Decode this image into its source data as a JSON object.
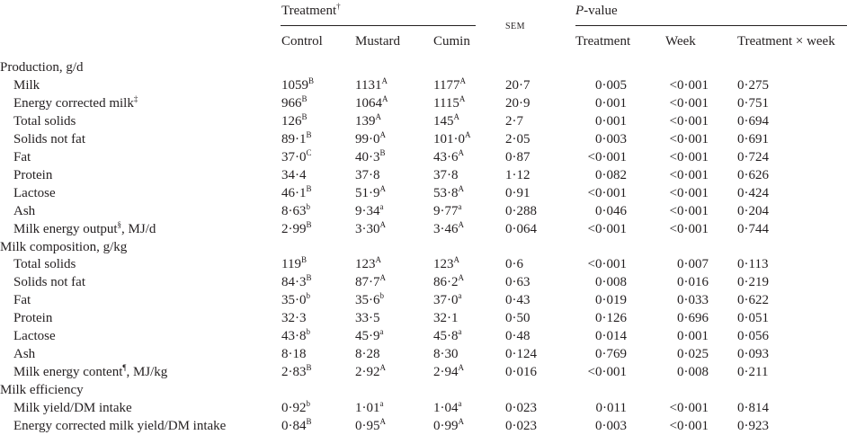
{
  "header": {
    "treatment": [
      "Treatment",
      "†"
    ],
    "sem": "SEM",
    "p_value": [
      "P",
      "-value"
    ],
    "columns": [
      "Control",
      "Mustard",
      "Cumin",
      "Treatment",
      "Week",
      "Treatment × week"
    ]
  },
  "sections": [
    {
      "title": "Production, g/d",
      "rows": [
        {
          "label": "Milk",
          "cells": [
            [
              "1059",
              "B"
            ],
            [
              "1131",
              "A"
            ],
            [
              "1177",
              "A"
            ],
            [
              "20·7"
            ],
            [
              "0·005"
            ],
            [
              "<0·001"
            ],
            [
              "0·275"
            ]
          ]
        },
        {
          "label": "Energy corrected milk",
          "label_sup": "‡",
          "cells": [
            [
              "966",
              "B"
            ],
            [
              "1064",
              "A"
            ],
            [
              "1115",
              "A"
            ],
            [
              "20·9"
            ],
            [
              "0·001"
            ],
            [
              "<0·001"
            ],
            [
              "0·751"
            ]
          ]
        },
        {
          "label": "Total solids",
          "cells": [
            [
              "126",
              "B"
            ],
            [
              "139",
              "A"
            ],
            [
              "145",
              "A"
            ],
            [
              "2·7"
            ],
            [
              "0·001"
            ],
            [
              "<0·001"
            ],
            [
              "0·694"
            ]
          ]
        },
        {
          "label": "Solids not fat",
          "cells": [
            [
              "89·1",
              "B"
            ],
            [
              "99·0",
              "A"
            ],
            [
              "101·0",
              "A"
            ],
            [
              "2·05"
            ],
            [
              "0·003"
            ],
            [
              "<0·001"
            ],
            [
              "0·691"
            ]
          ]
        },
        {
          "label": "Fat",
          "cells": [
            [
              "37·0",
              "C"
            ],
            [
              "40·3",
              "B"
            ],
            [
              "43·6",
              "A"
            ],
            [
              "0·87"
            ],
            [
              "<0·001"
            ],
            [
              "<0·001"
            ],
            [
              "0·724"
            ]
          ]
        },
        {
          "label": "Protein",
          "cells": [
            [
              "34·4"
            ],
            [
              "37·8"
            ],
            [
              "37·8"
            ],
            [
              "1·12"
            ],
            [
              "0·082"
            ],
            [
              "<0·001"
            ],
            [
              "0·626"
            ]
          ]
        },
        {
          "label": "Lactose",
          "cells": [
            [
              "46·1",
              "B"
            ],
            [
              "51·9",
              "A"
            ],
            [
              "53·8",
              "A"
            ],
            [
              "0·91"
            ],
            [
              "<0·001"
            ],
            [
              "<0·001"
            ],
            [
              "0·424"
            ]
          ]
        },
        {
          "label": "Ash",
          "cells": [
            [
              "8·63",
              "b"
            ],
            [
              "9·34",
              "a"
            ],
            [
              "9·77",
              "a"
            ],
            [
              "0·288"
            ],
            [
              "0·046"
            ],
            [
              "<0·001"
            ],
            [
              "0·204"
            ]
          ]
        },
        {
          "label": "Milk energy output",
          "label_sup": "§",
          "label_suffix": ", MJ/d",
          "cells": [
            [
              "2·99",
              "B"
            ],
            [
              "3·30",
              "A"
            ],
            [
              "3·46",
              "A"
            ],
            [
              "0·064"
            ],
            [
              "<0·001"
            ],
            [
              "<0·001"
            ],
            [
              "0·744"
            ]
          ]
        }
      ]
    },
    {
      "title": "Milk composition, g/kg",
      "rows": [
        {
          "label": "Total solids",
          "cells": [
            [
              "119",
              "B"
            ],
            [
              "123",
              "A"
            ],
            [
              "123",
              "A"
            ],
            [
              "0·6"
            ],
            [
              "<0·001"
            ],
            [
              "0·007"
            ],
            [
              "0·113"
            ]
          ]
        },
        {
          "label": "Solids not fat",
          "cells": [
            [
              "84·3",
              "B"
            ],
            [
              "87·7",
              "A"
            ],
            [
              "86·2",
              "A"
            ],
            [
              "0·63"
            ],
            [
              "0·008"
            ],
            [
              "0·016"
            ],
            [
              "0·219"
            ]
          ]
        },
        {
          "label": "Fat",
          "cells": [
            [
              "35·0",
              "b"
            ],
            [
              "35·6",
              "b"
            ],
            [
              "37·0",
              "a"
            ],
            [
              "0·43"
            ],
            [
              "0·019"
            ],
            [
              "0·033"
            ],
            [
              "0·622"
            ]
          ]
        },
        {
          "label": "Protein",
          "cells": [
            [
              "32·3"
            ],
            [
              "33·5"
            ],
            [
              "32·1"
            ],
            [
              "0·50"
            ],
            [
              "0·126"
            ],
            [
              "0·696"
            ],
            [
              "0·051"
            ]
          ]
        },
        {
          "label": "Lactose",
          "cells": [
            [
              "43·8",
              "b"
            ],
            [
              "45·9",
              "a"
            ],
            [
              "45·8",
              "a"
            ],
            [
              "0·48"
            ],
            [
              "0·014"
            ],
            [
              "0·001"
            ],
            [
              "0·056"
            ]
          ]
        },
        {
          "label": "Ash",
          "cells": [
            [
              "8·18"
            ],
            [
              "8·28"
            ],
            [
              "8·30"
            ],
            [
              "0·124"
            ],
            [
              "0·769"
            ],
            [
              "0·025"
            ],
            [
              "0·093"
            ]
          ]
        },
        {
          "label": "Milk energy content",
          "label_sup": "¶",
          "label_suffix": ", MJ/kg",
          "cells": [
            [
              "2·83",
              "B"
            ],
            [
              "2·92",
              "A"
            ],
            [
              "2·94",
              "A"
            ],
            [
              "0·016"
            ],
            [
              "<0·001"
            ],
            [
              "0·008"
            ],
            [
              "0·211"
            ]
          ]
        }
      ]
    },
    {
      "title": "Milk efficiency",
      "rows": [
        {
          "label": "Milk yield/DM intake",
          "cells": [
            [
              "0·92",
              "b"
            ],
            [
              "1·01",
              "a"
            ],
            [
              "1·04",
              "a"
            ],
            [
              "0·023"
            ],
            [
              "0·011"
            ],
            [
              "<0·001"
            ],
            [
              "0·814"
            ]
          ]
        },
        {
          "label": "Energy corrected milk yield/DM intake",
          "cells": [
            [
              "0·84",
              "B"
            ],
            [
              "0·95",
              "A"
            ],
            [
              "0·99",
              "A"
            ],
            [
              "0·023"
            ],
            [
              "0·003"
            ],
            [
              "<0·001"
            ],
            [
              "0·923"
            ]
          ]
        }
      ]
    }
  ]
}
